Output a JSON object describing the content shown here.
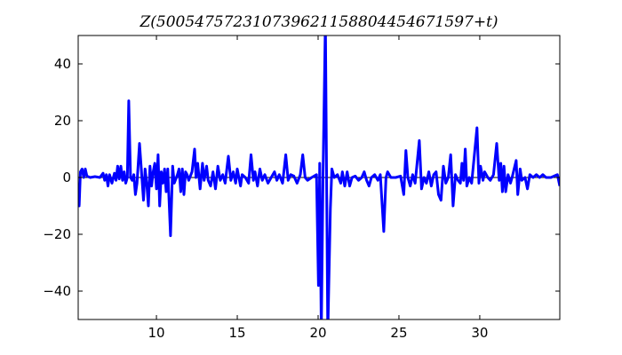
{
  "chart_data": {
    "type": "line",
    "title": "Z(500547572310739621158804454671597+t)",
    "xlabel": "",
    "ylabel": "",
    "xlim": [
      5.16,
      34.95
    ],
    "ylim": [
      -50,
      50
    ],
    "xticks": [
      10,
      15,
      20,
      25,
      30
    ],
    "yticks": [
      -40,
      -20,
      0,
      20,
      40
    ],
    "grid": false,
    "zero_line": true,
    "color": "#0000ff",
    "series": [
      {
        "x": [
          5.16,
          5.22,
          5.3,
          5.4,
          5.5,
          5.6,
          5.7,
          5.9,
          6.2,
          6.5,
          6.7,
          6.8,
          6.9,
          7.0,
          7.1,
          7.25,
          7.4,
          7.5,
          7.6,
          7.7,
          7.8,
          7.9,
          8.0,
          8.1,
          8.2,
          8.29,
          8.4,
          8.5,
          8.6,
          8.7,
          8.8,
          8.95,
          9.1,
          9.2,
          9.3,
          9.4,
          9.5,
          9.6,
          9.7,
          9.8,
          9.9,
          10.0,
          10.1,
          10.2,
          10.3,
          10.4,
          10.5,
          10.6,
          10.7,
          10.87,
          11.0,
          11.1,
          11.3,
          11.4,
          11.5,
          11.6,
          11.7,
          11.8,
          11.9,
          12.0,
          12.2,
          12.36,
          12.45,
          12.55,
          12.7,
          12.85,
          12.95,
          13.1,
          13.2,
          13.35,
          13.5,
          13.65,
          13.8,
          13.95,
          14.1,
          14.25,
          14.45,
          14.6,
          14.75,
          14.9,
          15.0,
          15.2,
          15.3,
          15.5,
          15.7,
          15.85,
          16.0,
          16.1,
          16.25,
          16.4,
          16.55,
          16.7,
          16.9,
          17.1,
          17.3,
          17.45,
          17.6,
          17.8,
          18.0,
          18.15,
          18.3,
          18.5,
          18.7,
          18.9,
          19.05,
          19.2,
          19.35,
          19.6,
          19.9,
          20.02,
          20.1,
          20.2,
          20.3,
          20.45,
          20.6,
          20.76,
          20.85,
          21.0,
          21.2,
          21.4,
          21.5,
          21.65,
          21.8,
          21.95,
          22.1,
          22.3,
          22.5,
          22.7,
          22.85,
          23.0,
          23.15,
          23.3,
          23.5,
          23.7,
          23.85,
          24.06,
          24.2,
          24.3,
          24.5,
          24.8,
          25.1,
          25.3,
          25.43,
          25.55,
          25.7,
          25.85,
          26.0,
          26.26,
          26.4,
          26.55,
          26.7,
          26.85,
          27.0,
          27.15,
          27.3,
          27.45,
          27.6,
          27.75,
          27.9,
          28.05,
          28.2,
          28.35,
          28.5,
          28.65,
          28.8,
          28.9,
          29.0,
          29.1,
          29.2,
          29.35,
          29.5,
          29.83,
          29.95,
          30.05,
          30.2,
          30.3,
          30.5,
          30.65,
          30.85,
          31.05,
          31.2,
          31.3,
          31.4,
          31.5,
          31.6,
          31.75,
          31.9,
          32.0,
          32.25,
          32.35,
          32.5,
          32.6,
          32.8,
          32.95,
          33.1,
          33.3,
          33.5,
          33.7,
          33.9,
          34.1,
          34.4,
          34.6,
          34.8,
          34.95
        ],
        "y": [
          -2,
          -10,
          2,
          3,
          0,
          3,
          0.5,
          0,
          0.3,
          0,
          1.5,
          -1,
          1,
          -3,
          1,
          -2,
          1.5,
          -1,
          4,
          -0.5,
          4,
          -1,
          2,
          -2,
          0,
          27,
          0,
          -1,
          1,
          -6,
          -2,
          12,
          0,
          -8,
          3,
          -2,
          -10,
          4,
          -3,
          2,
          5,
          -4,
          8,
          -10,
          2,
          -2,
          3,
          -5,
          3,
          -20.5,
          4,
          -2,
          1,
          3,
          -5,
          3,
          -6,
          2,
          1,
          -1,
          2,
          10,
          0,
          5,
          -4,
          5,
          -1,
          4,
          -1,
          -3,
          2,
          -4,
          4,
          -1,
          1,
          -2,
          7.5,
          -1,
          2,
          -2,
          3,
          -3,
          1,
          0,
          -2,
          8,
          -1,
          2,
          -3,
          3,
          -1,
          1,
          -2,
          0,
          2,
          -1,
          1,
          -2,
          8,
          -1,
          1,
          0.5,
          -2,
          1,
          8,
          0,
          -1,
          0,
          1,
          -38,
          5,
          -100,
          0,
          100,
          -100,
          -11,
          3,
          0,
          1,
          -2,
          2,
          -3,
          2,
          -3,
          0,
          0.5,
          -1,
          0,
          2,
          -1,
          -3,
          0,
          1,
          -1,
          1,
          -19,
          0,
          2,
          0,
          0,
          0.5,
          -6,
          9.5,
          0,
          -3,
          1,
          -2,
          13,
          -4,
          0,
          -2,
          2,
          -3,
          1,
          2,
          -6,
          -8,
          4,
          -2,
          0,
          8,
          -10,
          1,
          -1,
          -2,
          5,
          -1,
          10,
          -3,
          0,
          -2,
          17.5,
          -2,
          4,
          -1,
          2,
          0,
          -1,
          1,
          12,
          -1,
          5,
          -5,
          4,
          -5,
          1,
          -2,
          0,
          6,
          -6,
          3,
          -1,
          0,
          -4,
          1,
          0,
          1,
          0,
          1,
          0,
          0,
          0.5,
          1,
          -3
        ]
      }
    ]
  }
}
